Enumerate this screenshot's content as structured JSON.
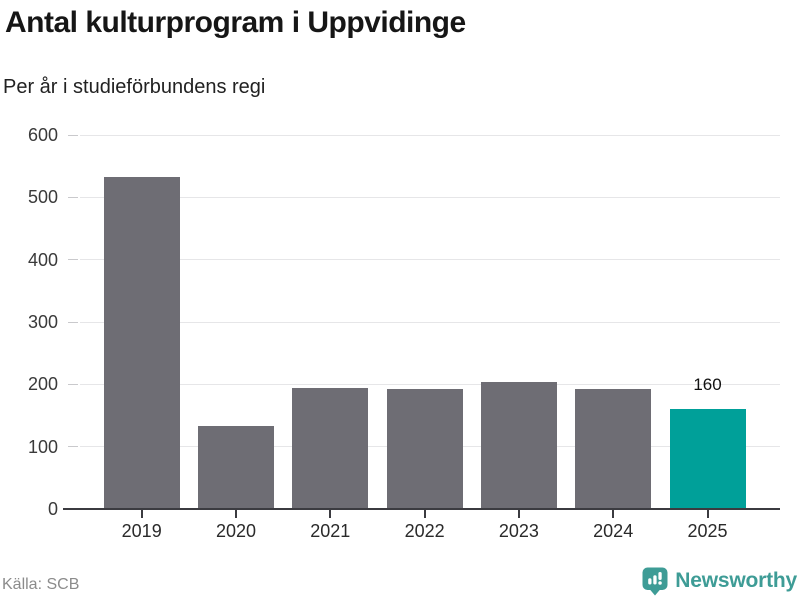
{
  "header": {
    "title": "Antal kulturprogram i Uppvidinge",
    "subtitle": "Per år i studieförbundens regi"
  },
  "footer": {
    "source": "Källa: SCB",
    "brand": "Newsworthy"
  },
  "colors": {
    "bar": "#6e6d74",
    "highlight": "#00a099",
    "axis": "#3b3b40",
    "grid": "#e6e6e8",
    "grid_dash": "#c9c9cc",
    "brand": "#3e9c96",
    "value_label": "#111111"
  },
  "chart_data": {
    "type": "bar",
    "title": "Antal kulturprogram i Uppvidinge",
    "subtitle": "Per år i studieförbundens regi",
    "categories": [
      "2019",
      "2020",
      "2021",
      "2022",
      "2023",
      "2024",
      "2025"
    ],
    "values": [
      533,
      133,
      194,
      192,
      204,
      193,
      160
    ],
    "highlight_index": 6,
    "annotations": [
      {
        "index": 6,
        "text": "160"
      }
    ],
    "xlabel": "",
    "ylabel": "",
    "ylim": [
      0,
      600
    ],
    "yticks": [
      0,
      100,
      200,
      300,
      400,
      500,
      600
    ],
    "grid": true,
    "legend": false,
    "source": "Källa: SCB"
  }
}
